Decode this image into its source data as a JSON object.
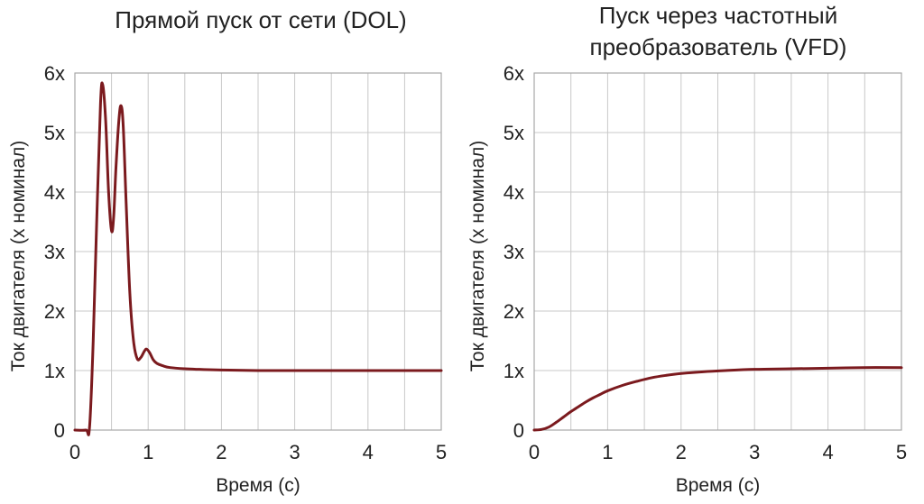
{
  "chart_data": [
    {
      "type": "line",
      "title": "Прямой пуск от сети (DOL)",
      "xlabel": "Время (с)",
      "ylabel": "Ток двигателя (x номинал)",
      "xlim": [
        0,
        5
      ],
      "ylim": [
        0,
        6
      ],
      "xticks": [
        0,
        1,
        2,
        3,
        4,
        5
      ],
      "xtick_labels": [
        "0",
        "1",
        "2",
        "3",
        "4",
        "5"
      ],
      "yticks": [
        0,
        1,
        2,
        3,
        4,
        5,
        6
      ],
      "ytick_labels": [
        "0",
        "1x",
        "2x",
        "3x",
        "4x",
        "5x",
        "6x"
      ],
      "grid": true,
      "legend": "none",
      "series": [
        {
          "color": "#7b1a1e",
          "x": [
            0,
            0.15,
            0.2,
            0.25,
            0.3,
            0.35,
            0.38,
            0.42,
            0.46,
            0.5,
            0.53,
            0.56,
            0.6,
            0.63,
            0.66,
            0.7,
            0.75,
            0.8,
            0.85,
            0.9,
            0.95,
            0.98,
            1.02,
            1.07,
            1.12,
            1.2,
            1.3,
            1.5,
            1.7,
            2.0,
            2.5,
            3.0,
            3.5,
            4.0,
            4.5,
            5.0
          ],
          "y": [
            0,
            0,
            0.05,
            1.5,
            3.6,
            5.5,
            5.8,
            5.2,
            4.0,
            3.35,
            3.6,
            4.4,
            5.2,
            5.45,
            5.1,
            3.8,
            2.3,
            1.5,
            1.2,
            1.22,
            1.33,
            1.36,
            1.3,
            1.18,
            1.12,
            1.08,
            1.05,
            1.03,
            1.02,
            1.01,
            1.0,
            1.0,
            1.0,
            1.0,
            1.0,
            1.0
          ]
        }
      ]
    },
    {
      "type": "line",
      "title": "Пуск через частотный преобразователь (VFD)",
      "title_lines": [
        "Пуск через частотный",
        "преобразователь (VFD)"
      ],
      "xlabel": "Время (с)",
      "ylabel": "Ток двигателя (x номинал)",
      "xlim": [
        0,
        5
      ],
      "ylim": [
        0,
        6
      ],
      "xticks": [
        0,
        1,
        2,
        3,
        4,
        5
      ],
      "xtick_labels": [
        "0",
        "1",
        "2",
        "3",
        "4",
        "5"
      ],
      "yticks": [
        0,
        1,
        2,
        3,
        4,
        5,
        6
      ],
      "ytick_labels": [
        "0",
        "1x",
        "2x",
        "3x",
        "4x",
        "5x",
        "6x"
      ],
      "grid": true,
      "legend": "none",
      "series": [
        {
          "color": "#7b1a1e",
          "x": [
            0,
            0.1,
            0.2,
            0.3,
            0.4,
            0.5,
            0.6,
            0.7,
            0.8,
            0.9,
            1.0,
            1.2,
            1.4,
            1.6,
            1.8,
            2.0,
            2.3,
            2.6,
            3.0,
            3.5,
            4.0,
            4.5,
            5.0
          ],
          "y": [
            0,
            0.01,
            0.05,
            0.13,
            0.22,
            0.31,
            0.39,
            0.47,
            0.54,
            0.6,
            0.66,
            0.75,
            0.82,
            0.88,
            0.92,
            0.95,
            0.98,
            1.0,
            1.02,
            1.03,
            1.04,
            1.05,
            1.05
          ]
        }
      ]
    }
  ]
}
